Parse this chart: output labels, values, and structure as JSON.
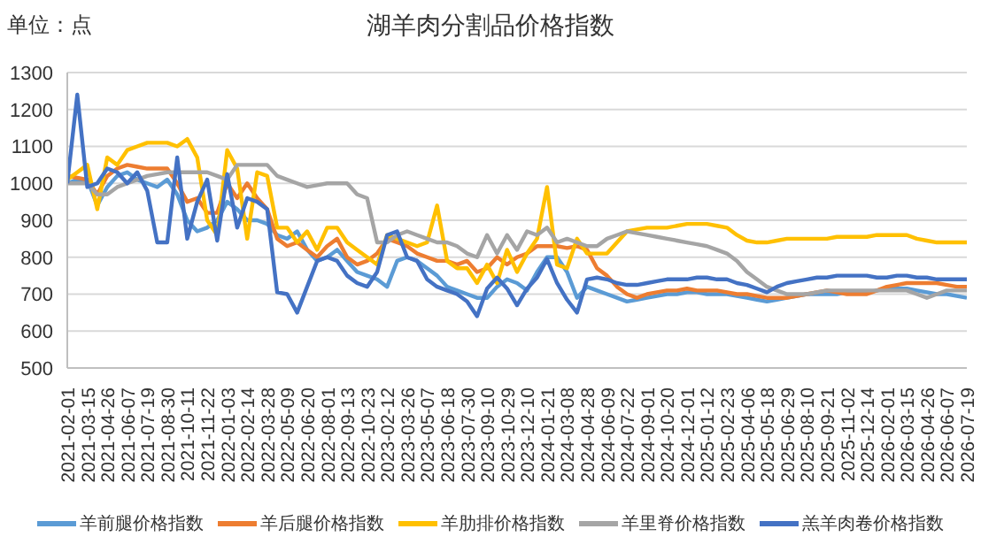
{
  "chart_data": {
    "type": "line",
    "title": "湖羊肉分割品价格指数",
    "annotations": [
      "单位：点"
    ],
    "categories": [
      "2021-02-01",
      null,
      "2021-03-15",
      null,
      "2021-04-26",
      null,
      "2021-06-07",
      null,
      "2021-07-19",
      null,
      "2021-08-30",
      null,
      "2021-10-11",
      null,
      "2021-11-22",
      null,
      "2022-01-03",
      null,
      "2022-02-14",
      null,
      "2022-03-28",
      null,
      "2022-05-09",
      null,
      "2022-06-20",
      null,
      "2022-08-01",
      null,
      "2022-09-13",
      null,
      "2022-10-23",
      null,
      "2023-02-12",
      null,
      "2023-03-26",
      null,
      "2023-05-07",
      null,
      "2023-06-18",
      null,
      "2023-07-30",
      null,
      "2023-09-10",
      null,
      "2023-10-29",
      null,
      "2023-12-10",
      null,
      "2024-01-21",
      null,
      "2024-03-08",
      null,
      "2024-04-28",
      null,
      "2024-06-09",
      null,
      "2024-07-22",
      null,
      "2024-09-01",
      null,
      "2024-10-20",
      null,
      "2024-12-01",
      null,
      "2025-01-12",
      null,
      "2025-02-23",
      null,
      "2025-04-06",
      null,
      "2025-05-18",
      null,
      "2025-06-29",
      null,
      "2025-08-10",
      null,
      "2025-09-21",
      null,
      "2025-11-02",
      null,
      "2025-12-14",
      null,
      "2026-02-01",
      null,
      "2026-03-15",
      null,
      "2026-04-26",
      null,
      "2026-06-07",
      null,
      "2026-07-19"
    ],
    "series": [
      {
        "name": "羊前腿价格指数",
        "color": "#5b9bd5",
        "values": [
          1000,
          1010,
          1010,
          940,
          990,
          1020,
          1030,
          1010,
          1000,
          990,
          1010,
          970,
          900,
          870,
          880,
          900,
          950,
          930,
          900,
          900,
          890,
          860,
          850,
          870,
          820,
          790,
          800,
          820,
          790,
          760,
          750,
          740,
          720,
          790,
          800,
          790,
          770,
          750,
          720,
          710,
          700,
          690,
          690,
          720,
          740,
          730,
          710,
          760,
          800,
          800,
          760,
          690,
          720,
          710,
          700,
          690,
          680,
          685,
          690,
          695,
          700,
          700,
          705,
          705,
          700,
          700,
          700,
          695,
          690,
          685,
          680,
          685,
          690,
          695,
          700,
          700,
          700,
          700,
          705,
          705,
          705,
          710,
          715,
          715,
          715,
          710,
          705,
          700,
          700,
          695,
          690
        ]
      },
      {
        "name": "羊后腿价格指数",
        "color": "#ed7d31",
        "values": [
          1020,
          1015,
          1010,
          970,
          1020,
          1040,
          1050,
          1045,
          1040,
          1040,
          1040,
          1000,
          950,
          960,
          920,
          920,
          1000,
          960,
          1000,
          960,
          930,
          850,
          830,
          840,
          820,
          800,
          830,
          850,
          800,
          780,
          790,
          810,
          850,
          840,
          830,
          810,
          800,
          790,
          790,
          780,
          790,
          760,
          770,
          800,
          780,
          800,
          810,
          830,
          830,
          830,
          825,
          830,
          820,
          770,
          750,
          720,
          700,
          690,
          700,
          705,
          710,
          710,
          715,
          710,
          710,
          710,
          705,
          700,
          700,
          695,
          690,
          690,
          690,
          695,
          700,
          705,
          710,
          705,
          700,
          700,
          700,
          710,
          720,
          725,
          730,
          730,
          730,
          730,
          725,
          720,
          720
        ]
      },
      {
        "name": "羊肋排价格指数",
        "color": "#ffc000",
        "values": [
          1010,
          1030,
          1050,
          930,
          1070,
          1050,
          1090,
          1100,
          1110,
          1110,
          1110,
          1100,
          1120,
          1070,
          900,
          860,
          1090,
          1040,
          850,
          1030,
          1020,
          880,
          880,
          840,
          870,
          820,
          880,
          880,
          840,
          820,
          800,
          780,
          860,
          850,
          840,
          830,
          840,
          940,
          790,
          770,
          770,
          730,
          780,
          730,
          820,
          760,
          810,
          850,
          990,
          780,
          770,
          850,
          810,
          810,
          810,
          840,
          870,
          875,
          880,
          880,
          880,
          885,
          890,
          890,
          890,
          885,
          880,
          860,
          845,
          840,
          840,
          845,
          850,
          850,
          850,
          850,
          850,
          855,
          855,
          855,
          855,
          860,
          860,
          860,
          860,
          850,
          845,
          840,
          840,
          840,
          840
        ]
      },
      {
        "name": "羊里脊价格指数",
        "color": "#a5a5a5",
        "values": [
          1000,
          1000,
          1000,
          970,
          970,
          990,
          1000,
          1010,
          1020,
          1025,
          1030,
          1030,
          1030,
          1030,
          1030,
          1020,
          1010,
          1050,
          1050,
          1050,
          1050,
          1020,
          1010,
          1000,
          990,
          995,
          1000,
          1000,
          1000,
          970,
          960,
          840,
          840,
          860,
          870,
          860,
          850,
          840,
          840,
          830,
          810,
          800,
          860,
          810,
          860,
          820,
          870,
          860,
          880,
          840,
          850,
          840,
          830,
          830,
          850,
          860,
          870,
          865,
          860,
          855,
          850,
          845,
          840,
          835,
          830,
          820,
          810,
          790,
          760,
          740,
          720,
          710,
          700,
          700,
          700,
          705,
          710,
          710,
          710,
          710,
          710,
          710,
          710,
          710,
          710,
          700,
          690,
          700,
          710,
          710,
          710
        ]
      },
      {
        "name": "羔羊肉卷价格指数",
        "color": "#4472c4",
        "values": [
          1000,
          1240,
          990,
          1000,
          1040,
          1030,
          1000,
          1030,
          980,
          840,
          840,
          1070,
          850,
          950,
          1010,
          845,
          1025,
          880,
          960,
          950,
          930,
          705,
          700,
          650,
          720,
          790,
          800,
          790,
          750,
          730,
          720,
          760,
          860,
          870,
          800,
          790,
          740,
          720,
          710,
          700,
          680,
          640,
          715,
          745,
          715,
          670,
          715,
          745,
          795,
          730,
          685,
          650,
          740,
          745,
          740,
          730,
          725,
          725,
          730,
          735,
          740,
          740,
          740,
          745,
          745,
          740,
          740,
          730,
          725,
          715,
          705,
          720,
          730,
          735,
          740,
          745,
          745,
          750,
          750,
          750,
          750,
          745,
          745,
          750,
          750,
          745,
          745,
          740,
          740,
          740,
          740
        ]
      }
    ],
    "ylim": [
      500,
      1300
    ],
    "yticks": [
      500,
      600,
      700,
      800,
      900,
      1000,
      1100,
      1200,
      1300
    ],
    "grid": "y",
    "legend": "bottom",
    "marker": "none",
    "line_style": "solid"
  }
}
